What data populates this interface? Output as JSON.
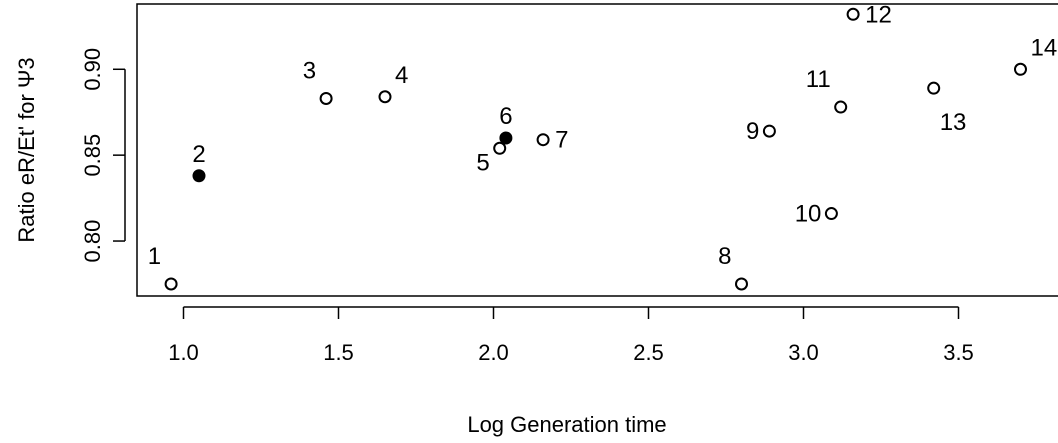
{
  "chart_data": {
    "type": "scatter",
    "title": "",
    "xlabel": "Log Generation time",
    "ylabel": "Ratio eR/Et' for Ψ3",
    "xlim": [
      0.85,
      3.85
    ],
    "ylim": [
      0.768,
      0.938
    ],
    "xticks": [
      1.0,
      1.5,
      2.0,
      2.5,
      3.0,
      3.5
    ],
    "xtick_labels": [
      "1.0",
      "1.5",
      "2.0",
      "2.5",
      "3.0",
      "3.5"
    ],
    "yticks": [
      0.8,
      0.85,
      0.9
    ],
    "ytick_labels": [
      "0.80",
      "0.85",
      "0.90"
    ],
    "grid": false,
    "points": [
      {
        "label": "1",
        "x": 0.96,
        "y": 0.775,
        "filled": false,
        "label_pos": "above-left"
      },
      {
        "label": "2",
        "x": 1.05,
        "y": 0.838,
        "filled": true,
        "label_pos": "above"
      },
      {
        "label": "3",
        "x": 1.46,
        "y": 0.883,
        "filled": false,
        "label_pos": "above-left"
      },
      {
        "label": "4",
        "x": 1.65,
        "y": 0.884,
        "filled": false,
        "label_pos": "above-right"
      },
      {
        "label": "5",
        "x": 2.02,
        "y": 0.854,
        "filled": false,
        "label_pos": "below-left"
      },
      {
        "label": "6",
        "x": 2.04,
        "y": 0.86,
        "filled": true,
        "label_pos": "above"
      },
      {
        "label": "7",
        "x": 2.16,
        "y": 0.859,
        "filled": false,
        "label_pos": "right"
      },
      {
        "label": "8",
        "x": 2.8,
        "y": 0.775,
        "filled": false,
        "label_pos": "above-left"
      },
      {
        "label": "9",
        "x": 2.89,
        "y": 0.864,
        "filled": false,
        "label_pos": "left"
      },
      {
        "label": "10",
        "x": 3.09,
        "y": 0.816,
        "filled": false,
        "label_pos": "left"
      },
      {
        "label": "11",
        "x": 3.12,
        "y": 0.878,
        "filled": false,
        "label_pos": "above-left"
      },
      {
        "label": "12",
        "x": 3.16,
        "y": 0.932,
        "filled": false,
        "label_pos": "right"
      },
      {
        "label": "13",
        "x": 3.42,
        "y": 0.889,
        "filled": false,
        "label_pos": "below-right"
      },
      {
        "label": "14",
        "x": 3.7,
        "y": 0.9,
        "filled": false,
        "label_pos": "above-right"
      }
    ]
  }
}
